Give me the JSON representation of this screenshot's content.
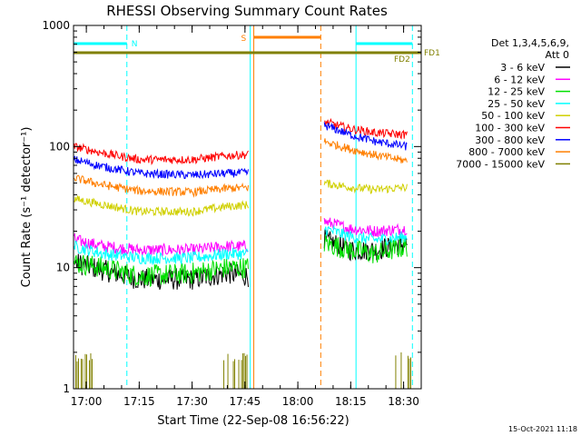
{
  "chart_data": {
    "type": "line",
    "title": "RHESSI Observing Summary Count Rates",
    "xlabel": "Start Time (22-Sep-08 16:56:22)",
    "ylabel": "Count Rate (s⁻¹ detector⁻¹)",
    "ylog": true,
    "ylim": [
      1,
      1000
    ],
    "xlim": [
      "16:56:22",
      "18:35:00"
    ],
    "x_ticks": [
      "17:00",
      "17:15",
      "17:30",
      "17:45",
      "18:00",
      "18:15",
      "18:30"
    ],
    "y_ticks": [
      "1",
      "10",
      "100",
      "1000"
    ],
    "timestamp": "15-Oct-2021 11:18",
    "legend": {
      "placement": "right",
      "header": [
        "Det 1,3,4,5,6,9,",
        "Att 0"
      ],
      "entries": [
        {
          "label": "3 - 6 keV",
          "color": "#000000"
        },
        {
          "label": "6 - 12 keV",
          "color": "#ff00ff"
        },
        {
          "label": "12 - 25 keV",
          "color": "#00e000"
        },
        {
          "label": "25 - 50 keV",
          "color": "#00ffff"
        },
        {
          "label": "50 - 100 keV",
          "color": "#d0d000"
        },
        {
          "label": "100 - 300 keV",
          "color": "#ff0000"
        },
        {
          "label": "300 - 800 keV",
          "color": "#0000ff"
        },
        {
          "label": "800 - 7000 keV",
          "color": "#ff7f00"
        },
        {
          "label": "7000 - 15000 keV",
          "color": "#808000"
        }
      ]
    },
    "gaps": [
      [
        "17:47:00",
        "18:07:30"
      ]
    ],
    "series": [
      {
        "color": "#000000",
        "segments": [
          [
            [
              "16:56:30",
              11
            ],
            [
              "17:05",
              9.5
            ],
            [
              "17:15",
              8
            ],
            [
              "17:30",
              8
            ],
            [
              "17:40",
              9
            ],
            [
              "17:46",
              8.5
            ]
          ],
          [
            [
              "18:07:30",
              17
            ],
            [
              "18:15",
              14
            ],
            [
              "18:22",
              14
            ],
            [
              "18:31",
              16
            ]
          ]
        ]
      },
      {
        "color": "#ff00ff",
        "segments": [
          [
            [
              "16:56:30",
              17
            ],
            [
              "17:05",
              15
            ],
            [
              "17:15",
              14
            ],
            [
              "17:30",
              14
            ],
            [
              "17:40",
              15
            ],
            [
              "17:46",
              15
            ]
          ],
          [
            [
              "18:07:30",
              24
            ],
            [
              "18:15",
              21
            ],
            [
              "18:22",
              20
            ],
            [
              "18:31",
              21
            ]
          ]
        ]
      },
      {
        "color": "#00e000",
        "segments": [
          [
            [
              "16:56:30",
              11
            ],
            [
              "17:05",
              10
            ],
            [
              "17:15",
              8.5
            ],
            [
              "17:30",
              9
            ],
            [
              "17:40",
              10
            ],
            [
              "17:46",
              10
            ]
          ],
          [
            [
              "18:07:30",
              16
            ],
            [
              "18:15",
              14
            ],
            [
              "18:22",
              13
            ],
            [
              "18:31",
              15
            ]
          ]
        ]
      },
      {
        "color": "#00ffff",
        "segments": [
          [
            [
              "16:56:30",
              15
            ],
            [
              "17:05",
              13
            ],
            [
              "17:15",
              12
            ],
            [
              "17:30",
              12
            ],
            [
              "17:40",
              13
            ],
            [
              "17:46",
              13
            ]
          ],
          [
            [
              "18:07:30",
              21
            ],
            [
              "18:15",
              18
            ],
            [
              "18:22",
              17
            ],
            [
              "18:31",
              18
            ]
          ]
        ]
      },
      {
        "color": "#d0d000",
        "segments": [
          [
            [
              "16:56:30",
              37
            ],
            [
              "17:05",
              33
            ],
            [
              "17:15",
              29
            ],
            [
              "17:30",
              29
            ],
            [
              "17:40",
              32
            ],
            [
              "17:46",
              33
            ]
          ],
          [
            [
              "18:07:30",
              50
            ],
            [
              "18:15",
              46
            ],
            [
              "18:22",
              44
            ],
            [
              "18:31",
              46
            ]
          ]
        ]
      },
      {
        "color": "#ff0000",
        "segments": [
          [
            [
              "16:56:30",
              100
            ],
            [
              "17:05",
              88
            ],
            [
              "17:15",
              78
            ],
            [
              "17:30",
              78
            ],
            [
              "17:40",
              84
            ],
            [
              "17:46",
              86
            ]
          ],
          [
            [
              "18:07:30",
              160
            ],
            [
              "18:15",
              140
            ],
            [
              "18:22",
              130
            ],
            [
              "18:31",
              125
            ]
          ]
        ]
      },
      {
        "color": "#0000ff",
        "segments": [
          [
            [
              "16:56:30",
              78
            ],
            [
              "17:05",
              68
            ],
            [
              "17:15",
              60
            ],
            [
              "17:30",
              58
            ],
            [
              "17:40",
              60
            ],
            [
              "17:46",
              61
            ]
          ],
          [
            [
              "18:07:30",
              150
            ],
            [
              "18:15",
              125
            ],
            [
              "18:22",
              110
            ],
            [
              "18:31",
              100
            ]
          ]
        ]
      },
      {
        "color": "#ff7f00",
        "segments": [
          [
            [
              "16:56:30",
              55
            ],
            [
              "17:05",
              48
            ],
            [
              "17:15",
              43
            ],
            [
              "17:30",
              42
            ],
            [
              "17:40",
              45
            ],
            [
              "17:46",
              46
            ]
          ],
          [
            [
              "18:07:30",
              110
            ],
            [
              "18:15",
              95
            ],
            [
              "18:22",
              85
            ],
            [
              "18:31",
              76
            ]
          ]
        ]
      }
    ],
    "markers": {
      "vertical_lines": [
        {
          "time": "16:56:22",
          "color": "#00ffff",
          "style": "solid"
        },
        {
          "time": "17:11:30",
          "color": "#00ffff",
          "style": "dashed"
        },
        {
          "time": "17:46:30",
          "color": "#00ffff",
          "style": "solid"
        },
        {
          "time": "17:47:30",
          "color": "#ff7f00",
          "style": "solid"
        },
        {
          "time": "18:06:30",
          "color": "#ff7f00",
          "style": "dashed"
        },
        {
          "time": "18:16:30",
          "color": "#00ffff",
          "style": "solid"
        },
        {
          "time": "18:32:30",
          "color": "#00ffff",
          "style": "dashed"
        }
      ],
      "bars": [
        {
          "label": "N",
          "color": "#00ffff",
          "start": "16:56:22",
          "end": "17:11:30"
        },
        {
          "label": "S",
          "color": "#ff7f00",
          "start": "17:47:30",
          "end": "18:06:30"
        },
        {
          "label": "",
          "color": "#00ffff",
          "start": "18:16:30",
          "end": "18:32:30"
        }
      ],
      "flare_labels": [
        {
          "label": "FD1",
          "color": "#808000"
        },
        {
          "label": "FD2",
          "color": "#808000"
        }
      ]
    }
  }
}
